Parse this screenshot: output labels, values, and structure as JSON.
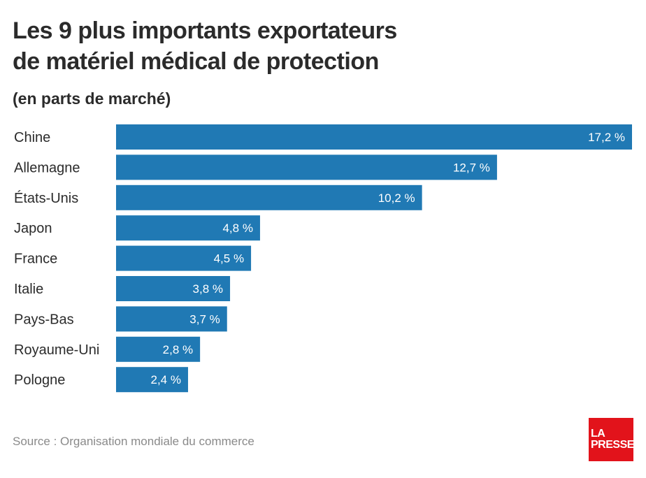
{
  "header": {
    "title_line1": "Les 9 plus importants exportateurs",
    "title_line2": "de matériel médical de protection",
    "subtitle": "(en parts de marché)"
  },
  "chart_data": {
    "type": "bar",
    "orientation": "horizontal",
    "categories": [
      "Chine",
      "Allemagne",
      "États-Unis",
      "Japon",
      "France",
      "Italie",
      "Pays-Bas",
      "Royaume-Uni",
      "Pologne"
    ],
    "values": [
      17.2,
      12.7,
      10.2,
      4.8,
      4.5,
      3.8,
      3.7,
      2.8,
      2.4
    ],
    "value_labels": [
      "17,2 %",
      "12,7 %",
      "10,2 %",
      "4,8 %",
      "4,5 %",
      "3,8 %",
      "3,7 %",
      "2,8 %",
      "2,4 %"
    ],
    "bar_color": "#2079b4",
    "xlim": [
      0,
      17.2
    ],
    "grid": false,
    "legend": "none"
  },
  "footer": {
    "source": "Source : Organisation mondiale du commerce",
    "logo_line1": "LA",
    "logo_line2": "PRESSE",
    "logo_color": "#e2131b"
  }
}
